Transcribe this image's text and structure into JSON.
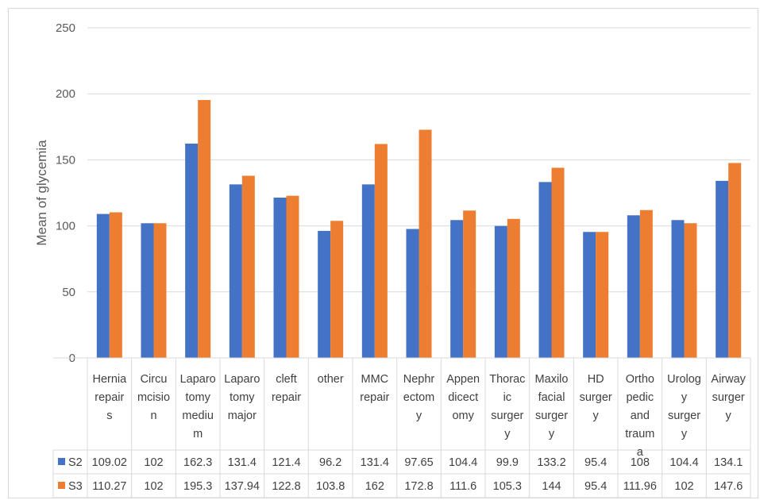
{
  "chart_data": {
    "type": "bar",
    "ylabel": "Mean of glycemia",
    "xlabel": "",
    "ylim": [
      0,
      250
    ],
    "yticks": [
      0,
      50,
      100,
      150,
      200,
      250
    ],
    "grid": true,
    "legend": "data-table",
    "categories": [
      [
        "Hernia",
        "repair",
        "s"
      ],
      [
        "Circu",
        "mcisio",
        "n"
      ],
      [
        "Laparo",
        "tomy",
        "mediu",
        "m"
      ],
      [
        "Laparo",
        "tomy",
        "major"
      ],
      [
        "cleft",
        "repair"
      ],
      [
        "other"
      ],
      [
        "MMC",
        "repair"
      ],
      [
        "Nephr",
        "ectom",
        "y"
      ],
      [
        "Appen",
        "dicect",
        "omy"
      ],
      [
        "Thorac",
        "ic",
        "surger",
        "y"
      ],
      [
        "Maxilo",
        "facial",
        "surger",
        "y"
      ],
      [
        "HD",
        "surger",
        "y"
      ],
      [
        "Ortho",
        "pedic",
        "and",
        "traum",
        "a"
      ],
      [
        "Urolog",
        "y",
        "surger",
        "y"
      ],
      [
        "Airway",
        "surger",
        "y"
      ]
    ],
    "series": [
      {
        "name": "S2",
        "color": "#4472c4",
        "values": [
          109.02,
          102,
          162.3,
          131.4,
          121.4,
          96.2,
          131.4,
          97.65,
          104.4,
          99.9,
          133.2,
          95.4,
          108,
          104.4,
          134.1
        ],
        "labels": [
          "109.02",
          "102",
          "162.3",
          "131.4",
          "121.4",
          "96.2",
          "131.4",
          "97.65",
          "104.4",
          "99.9",
          "133.2",
          "95.4",
          "108",
          "104.4",
          "134.1"
        ]
      },
      {
        "name": "S3",
        "color": "#ed7d31",
        "values": [
          110.27,
          102,
          195.3,
          137.94,
          122.8,
          103.8,
          162,
          172.8,
          111.6,
          105.3,
          144,
          95.4,
          111.96,
          102,
          147.6
        ],
        "labels": [
          "110.27",
          "102",
          "195.3",
          "137.94",
          "122.8",
          "103.8",
          "162",
          "172.8",
          "111.6",
          "105.3",
          "144",
          "95.4",
          "111.96",
          "102",
          "147.6"
        ]
      }
    ]
  }
}
